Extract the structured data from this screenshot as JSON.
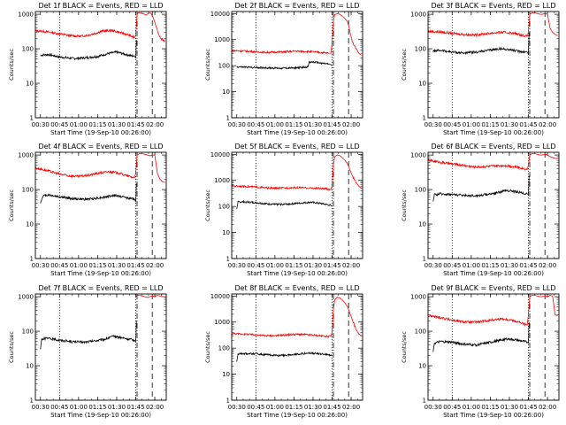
{
  "common": {
    "xlabel": "Start Time (19-Sep-10 00:26:00)",
    "ylabel": "Counts/sec",
    "x_ticks": [
      "00:30",
      "00:45",
      "01:00",
      "01:15",
      "01:30",
      "01:45",
      "02:00"
    ],
    "x_tick_minutes": [
      4,
      19,
      34,
      49,
      64,
      79,
      94
    ],
    "x_range_minutes": [
      0,
      103
    ],
    "dotted_lines_minutes": [
      19,
      79
    ],
    "dashdot_line_minute": 79,
    "dashed_line_minute": 92,
    "colors": {
      "events": "#000000",
      "lld": "#ff0000"
    },
    "scale": "log"
  },
  "chart_data": [
    {
      "type": "line",
      "title": "Det 1f BLACK = Events, RED = LLD",
      "yticks": [
        "1",
        "10",
        "100",
        "1000"
      ],
      "ylim": [
        1,
        1200
      ],
      "series": [
        {
          "color": "#000000",
          "x": [
            4,
            10,
            19,
            30,
            40,
            49,
            57,
            64,
            70,
            78,
            79,
            79.5
          ],
          "y": [
            65,
            68,
            58,
            52,
            55,
            60,
            72,
            80,
            70,
            60,
            55,
            180
          ]
        },
        {
          "color": "#ff0000",
          "x": [
            0,
            6,
            12,
            19,
            27,
            36,
            44,
            52,
            60,
            66,
            72,
            78,
            79,
            80,
            81,
            82,
            84,
            86,
            87,
            88,
            89,
            90,
            91,
            92,
            93,
            95,
            97,
            99,
            102
          ],
          "y": [
            330,
            320,
            300,
            270,
            240,
            230,
            260,
            320,
            340,
            300,
            260,
            210,
            250,
            1000,
            1100,
            1100,
            1050,
            1000,
            950,
            1000,
            1050,
            1100,
            1050,
            900,
            750,
            450,
            260,
            190,
            170
          ]
        }
      ]
    },
    {
      "type": "line",
      "title": "Det 2f BLACK = Events, RED = LLD",
      "yticks": [
        "1",
        "10",
        "100",
        "1000",
        "10000"
      ],
      "ylim": [
        1,
        12000
      ],
      "series": [
        {
          "color": "#000000",
          "x": [
            4,
            10,
            19,
            30,
            40,
            49,
            55,
            60,
            61,
            68,
            76,
            78,
            79
          ],
          "y": [
            90,
            88,
            85,
            82,
            80,
            82,
            85,
            90,
            140,
            130,
            115,
            110,
            100
          ]
        },
        {
          "color": "#ff0000",
          "x": [
            0,
            6,
            12,
            19,
            26,
            34,
            42,
            50,
            58,
            64,
            70,
            76,
            78,
            79,
            80,
            81,
            83,
            85,
            87,
            89,
            91,
            92,
            93,
            95,
            98,
            100,
            102
          ],
          "y": [
            380,
            370,
            360,
            340,
            320,
            330,
            340,
            360,
            350,
            340,
            320,
            300,
            300,
            700,
            5000,
            9000,
            10000,
            9500,
            8000,
            6500,
            5000,
            3500,
            2000,
            800,
            450,
            300,
            250
          ]
        }
      ]
    },
    {
      "type": "line",
      "title": "Det 3f BLACK = Events, RED = LLD",
      "yticks": [
        "1",
        "10",
        "100",
        "1000"
      ],
      "ylim": [
        1,
        1200
      ],
      "series": [
        {
          "color": "#000000",
          "x": [
            4,
            10,
            19,
            28,
            38,
            48,
            56,
            64,
            70,
            78,
            79,
            79.5
          ],
          "y": [
            85,
            90,
            80,
            75,
            80,
            90,
            100,
            95,
            85,
            80,
            70,
            300
          ]
        },
        {
          "color": "#ff0000",
          "x": [
            0,
            6,
            12,
            19,
            28,
            36,
            44,
            52,
            60,
            68,
            74,
            78,
            79,
            80,
            82,
            84,
            86,
            88,
            90,
            92,
            94,
            96,
            98,
            100,
            102
          ],
          "y": [
            320,
            310,
            300,
            280,
            260,
            250,
            270,
            290,
            300,
            280,
            250,
            230,
            300,
            1000,
            1100,
            1100,
            1050,
            1000,
            1000,
            1050,
            1000,
            400,
            300,
            260,
            240
          ]
        }
      ]
    },
    {
      "type": "line",
      "title": "Det 4f BLACK = Events, RED = LLD",
      "yticks": [
        "1",
        "10",
        "100",
        "1000"
      ],
      "ylim": [
        1,
        1200
      ],
      "series": [
        {
          "color": "#000000",
          "x": [
            4,
            6,
            10,
            19,
            28,
            38,
            46,
            54,
            62,
            70,
            78,
            79,
            79.5
          ],
          "y": [
            40,
            65,
            70,
            62,
            55,
            52,
            55,
            60,
            68,
            60,
            52,
            45,
            150
          ]
        },
        {
          "color": "#ff0000",
          "x": [
            0,
            6,
            12,
            19,
            26,
            34,
            42,
            50,
            58,
            66,
            72,
            78,
            79,
            80,
            82,
            84,
            86,
            88,
            90,
            92,
            94,
            96,
            98,
            100,
            102
          ],
          "y": [
            420,
            380,
            330,
            280,
            250,
            240,
            260,
            300,
            330,
            300,
            250,
            220,
            300,
            1000,
            1100,
            1100,
            1050,
            1000,
            950,
            1000,
            1000,
            300,
            200,
            170,
            160
          ]
        }
      ]
    },
    {
      "type": "line",
      "title": "Det 5f BLACK = Events, RED = LLD",
      "yticks": [
        "1",
        "10",
        "100",
        "1000",
        "10000"
      ],
      "ylim": [
        1,
        12000
      ],
      "series": [
        {
          "color": "#000000",
          "x": [
            4,
            5,
            10,
            19,
            28,
            38,
            46,
            54,
            62,
            70,
            78,
            79
          ],
          "y": [
            80,
            150,
            150,
            140,
            125,
            120,
            125,
            135,
            145,
            130,
            110,
            100
          ]
        },
        {
          "color": "#ff0000",
          "x": [
            0,
            6,
            12,
            19,
            26,
            34,
            42,
            50,
            58,
            66,
            72,
            78,
            79,
            80,
            81,
            83,
            85,
            87,
            89,
            91,
            92,
            93,
            95,
            98,
            100,
            102
          ],
          "y": [
            620,
            600,
            580,
            560,
            520,
            500,
            510,
            530,
            520,
            500,
            480,
            450,
            600,
            4000,
            8000,
            9500,
            9000,
            7500,
            6000,
            4500,
            3500,
            2500,
            1500,
            800,
            600,
            500
          ]
        }
      ]
    },
    {
      "type": "line",
      "title": "Det 6f BLACK = Events, RED = LLD",
      "yticks": [
        "1",
        "10",
        "100",
        "1000"
      ],
      "ylim": [
        1,
        1200
      ],
      "series": [
        {
          "color": "#000000",
          "x": [
            4,
            5,
            10,
            19,
            28,
            38,
            46,
            54,
            62,
            70,
            78,
            79,
            79.5
          ],
          "y": [
            45,
            70,
            75,
            72,
            68,
            66,
            72,
            80,
            95,
            85,
            75,
            70,
            250
          ]
        },
        {
          "color": "#ff0000",
          "x": [
            0,
            6,
            12,
            19,
            28,
            36,
            44,
            52,
            60,
            68,
            74,
            78,
            79,
            80,
            82,
            84,
            86,
            88,
            90,
            92,
            94,
            96,
            98,
            100,
            102
          ],
          "y": [
            700,
            650,
            600,
            550,
            500,
            450,
            460,
            480,
            500,
            460,
            420,
            380,
            500,
            1000,
            1100,
            1100,
            1050,
            1000,
            1000,
            1050,
            1000,
            900,
            850,
            800,
            780
          ]
        }
      ]
    },
    {
      "type": "line",
      "title": "Det 7f BLACK = Events, RED = LLD",
      "yticks": [
        "1",
        "10",
        "100",
        "1000"
      ],
      "ylim": [
        1,
        1200
      ],
      "series": [
        {
          "color": "#000000",
          "x": [
            4,
            5,
            10,
            19,
            28,
            38,
            46,
            54,
            62,
            70,
            78,
            79,
            79.5
          ],
          "y": [
            30,
            60,
            62,
            55,
            50,
            48,
            52,
            58,
            72,
            62,
            55,
            50,
            200
          ]
        },
        {
          "color": "#ff0000",
          "x": [
            79,
            80,
            82,
            84,
            86,
            88,
            90,
            92,
            94,
            96,
            98,
            100,
            102
          ],
          "y": [
            1000,
            1100,
            1100,
            1050,
            1000,
            950,
            1000,
            1050,
            1000,
            1100,
            1050,
            1000,
            1000
          ]
        }
      ]
    },
    {
      "type": "line",
      "title": "Det 8f BLACK = Events, RED = LLD",
      "yticks": [
        "1",
        "10",
        "100",
        "1000",
        "10000"
      ],
      "ylim": [
        1,
        12000
      ],
      "series": [
        {
          "color": "#000000",
          "x": [
            4,
            5,
            10,
            19,
            28,
            38,
            46,
            54,
            62,
            70,
            78,
            79
          ],
          "y": [
            30,
            60,
            62,
            60,
            55,
            52,
            55,
            60,
            65,
            60,
            55,
            50
          ]
        },
        {
          "color": "#ff0000",
          "x": [
            0,
            6,
            12,
            19,
            26,
            34,
            42,
            50,
            58,
            66,
            72,
            78,
            79,
            80,
            81,
            83,
            85,
            87,
            89,
            91,
            92,
            93,
            95,
            98,
            100,
            102
          ],
          "y": [
            360,
            350,
            340,
            320,
            300,
            300,
            320,
            340,
            330,
            310,
            290,
            280,
            400,
            3000,
            7000,
            9000,
            8500,
            7000,
            5500,
            4000,
            3000,
            2200,
            1200,
            500,
            350,
            300
          ]
        }
      ]
    },
    {
      "type": "line",
      "title": "Det 9f BLACK = Events, RED = LLD",
      "yticks": [
        "1",
        "10",
        "100",
        "1000"
      ],
      "ylim": [
        1,
        1200
      ],
      "series": [
        {
          "color": "#000000",
          "x": [
            4,
            5,
            10,
            19,
            28,
            38,
            46,
            54,
            62,
            70,
            78,
            79,
            79.5
          ],
          "y": [
            25,
            45,
            50,
            48,
            42,
            40,
            45,
            52,
            60,
            55,
            48,
            45,
            180
          ]
        },
        {
          "color": "#ff0000",
          "x": [
            0,
            6,
            12,
            19,
            26,
            34,
            42,
            50,
            58,
            66,
            72,
            78,
            79,
            80,
            82,
            84,
            86,
            88,
            90,
            92,
            94,
            96,
            98,
            100,
            102
          ],
          "y": [
            280,
            260,
            240,
            210,
            190,
            180,
            190,
            210,
            230,
            210,
            180,
            150,
            300,
            1000,
            1100,
            1100,
            1050,
            1000,
            1000,
            1050,
            1000,
            1100,
            1050,
            300,
            280
          ]
        }
      ]
    }
  ]
}
